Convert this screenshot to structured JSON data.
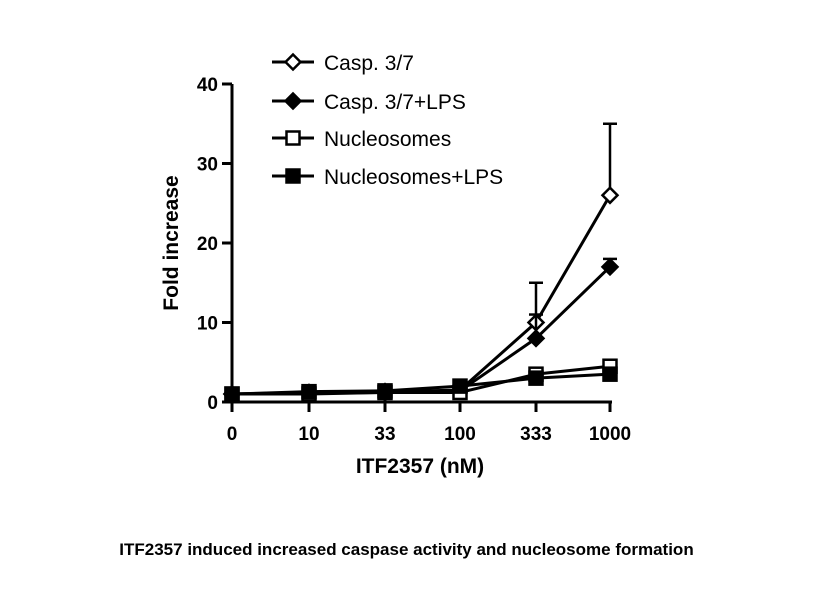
{
  "caption": "ITF2357 induced increased caspase activity and nucleosome formation",
  "chart_data": {
    "type": "line",
    "title": "",
    "xlabel": "ITF2357 (nM)",
    "ylabel": "Fold increase",
    "categories": [
      "0",
      "10",
      "33",
      "100",
      "333",
      "1000"
    ],
    "yticks": [
      0,
      10,
      20,
      30,
      40
    ],
    "ylim": [
      0,
      40
    ],
    "grid": false,
    "legend_position": "top-right",
    "series": [
      {
        "name": "Casp. 3/7",
        "marker": "open-diamond",
        "values": [
          1.0,
          1.2,
          1.3,
          1.5,
          10.0,
          26.0
        ],
        "error": [
          0.3,
          0.3,
          0.3,
          0.4,
          5.0,
          9.0
        ]
      },
      {
        "name": "Casp. 3/7+LPS",
        "marker": "filled-diamond",
        "values": [
          1.0,
          1.1,
          1.2,
          1.4,
          8.0,
          17.0
        ],
        "error": [
          0.3,
          0.3,
          0.3,
          0.4,
          3.0,
          1.0
        ]
      },
      {
        "name": "Nucleosomes",
        "marker": "open-square",
        "values": [
          1.0,
          1.0,
          1.2,
          1.2,
          3.5,
          4.5
        ],
        "error": [
          0.2,
          0.2,
          0.2,
          0.3,
          0.8,
          0.8
        ]
      },
      {
        "name": "Nucleosomes+LPS",
        "marker": "filled-square",
        "values": [
          1.0,
          1.3,
          1.4,
          2.0,
          3.0,
          3.5
        ],
        "error": [
          0.2,
          0.2,
          0.2,
          0.3,
          0.5,
          0.5
        ]
      }
    ]
  }
}
